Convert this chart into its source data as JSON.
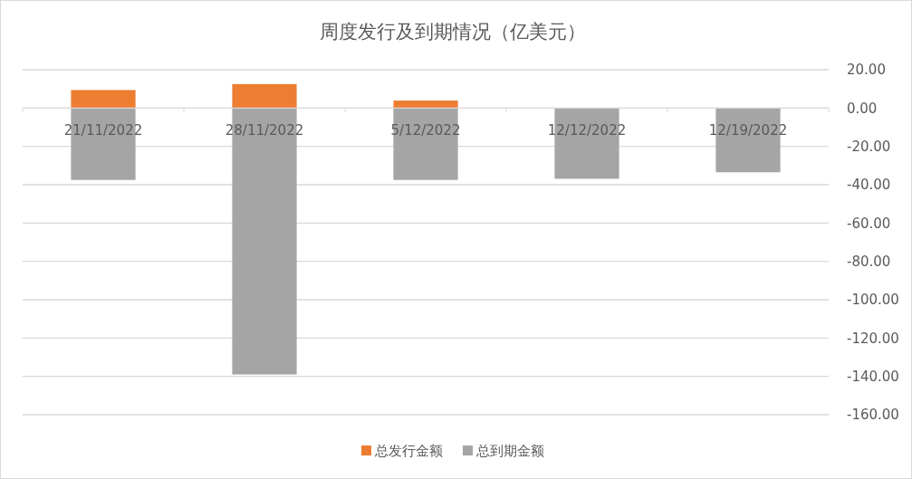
{
  "chart_data": {
    "type": "bar",
    "title": "周度发行及到期情况（亿美元）",
    "categories": [
      "21/11/2022",
      "28/11/2022",
      "5/12/2022",
      "12/12/2022",
      "12/19/2022"
    ],
    "stacked": true,
    "series": [
      {
        "name": "总发行金额",
        "color": "#ed7d31",
        "values": [
          9.4,
          12.5,
          3.9,
          0,
          0
        ]
      },
      {
        "name": "总到期金额",
        "color": "#a5a5a5",
        "values": [
          -37.5,
          -139,
          -37.5,
          -36.9,
          -33.5
        ]
      }
    ],
    "ylim": [
      -160,
      20
    ],
    "yticks": [
      {
        "value": 20,
        "label": "20.00"
      },
      {
        "value": 0,
        "label": "0.00"
      },
      {
        "value": -20,
        "label": "-20.00"
      },
      {
        "value": -40,
        "label": "-40.00"
      },
      {
        "value": -60,
        "label": "-60.00"
      },
      {
        "value": -80,
        "label": "-80.00"
      },
      {
        "value": -100,
        "label": "-100.00"
      },
      {
        "value": -120,
        "label": "-120.00"
      },
      {
        "value": -140,
        "label": "-140.00"
      },
      {
        "value": -160,
        "label": "-160.00"
      }
    ],
    "grid": "y",
    "legend": "bottom"
  }
}
